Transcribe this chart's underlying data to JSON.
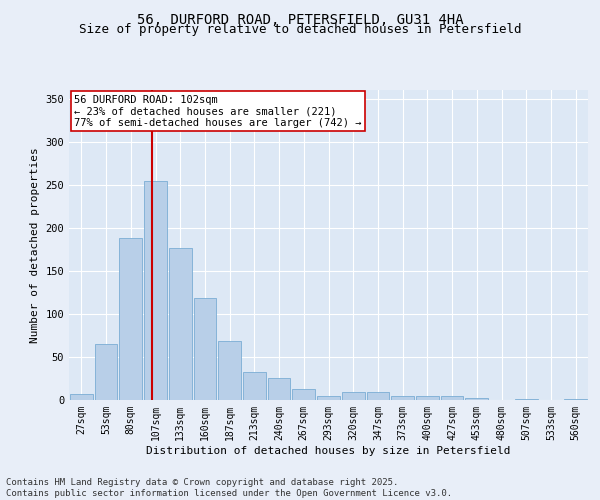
{
  "title": "56, DURFORD ROAD, PETERSFIELD, GU31 4HA",
  "subtitle": "Size of property relative to detached houses in Petersfield",
  "xlabel": "Distribution of detached houses by size in Petersfield",
  "ylabel": "Number of detached properties",
  "categories": [
    "27sqm",
    "53sqm",
    "80sqm",
    "107sqm",
    "133sqm",
    "160sqm",
    "187sqm",
    "213sqm",
    "240sqm",
    "267sqm",
    "293sqm",
    "320sqm",
    "347sqm",
    "373sqm",
    "400sqm",
    "427sqm",
    "453sqm",
    "480sqm",
    "507sqm",
    "533sqm",
    "560sqm"
  ],
  "values": [
    7,
    65,
    188,
    254,
    176,
    119,
    68,
    32,
    26,
    13,
    5,
    9,
    9,
    5,
    5,
    5,
    2,
    0,
    1,
    0,
    1
  ],
  "bar_color": "#b8cfe8",
  "bar_edge_color": "#7aadd4",
  "background_color": "#dde8f5",
  "fig_background_color": "#e8eef8",
  "grid_color": "#ffffff",
  "vline_color": "#cc0000",
  "vline_x": 2.85,
  "annotation_text": "56 DURFORD ROAD: 102sqm\n← 23% of detached houses are smaller (221)\n77% of semi-detached houses are larger (742) →",
  "annotation_box_facecolor": "#ffffff",
  "annotation_box_edgecolor": "#cc0000",
  "ylim": [
    0,
    360
  ],
  "yticks": [
    0,
    50,
    100,
    150,
    200,
    250,
    300,
    350
  ],
  "title_fontsize": 10,
  "subtitle_fontsize": 9,
  "axis_label_fontsize": 8,
  "tick_fontsize": 7,
  "annotation_fontsize": 7.5,
  "footer_fontsize": 6.5,
  "footer_text": "Contains HM Land Registry data © Crown copyright and database right 2025.\nContains public sector information licensed under the Open Government Licence v3.0."
}
